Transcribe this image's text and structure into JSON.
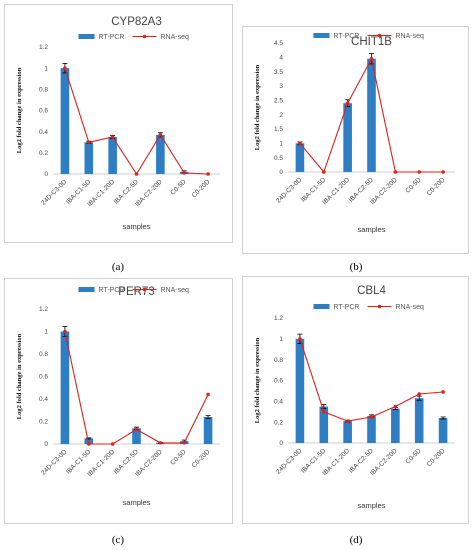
{
  "colors": {
    "bar": "#2e7ec4",
    "line": "#e0201b",
    "err": "#000000"
  },
  "chart_data": [
    {
      "type": "bar",
      "title": "CYP82A3",
      "label": "(a)",
      "categories": [
        "24D-C3-0D",
        "IBA-C1-5D",
        "IBA-C1-20D",
        "IBA-C2-5D",
        "IBA-C2-20D",
        "C0-5D",
        "C0-20D"
      ],
      "series": [
        {
          "name": "RT-PCR",
          "kind": "bar",
          "values": [
            1.0,
            0.3,
            0.35,
            0.0,
            0.37,
            0.02,
            0.0
          ],
          "errors": [
            0.045,
            0.01,
            0.015,
            0.0,
            0.02,
            0.01,
            0.0
          ]
        },
        {
          "name": "RNA-seq",
          "kind": "line",
          "values": [
            1.0,
            0.3,
            0.35,
            0.0,
            0.37,
            0.01,
            0.0
          ]
        }
      ],
      "yticks": [
        "0",
        "0.2",
        "0.4",
        "0.6",
        "0.8",
        "1",
        "1.2"
      ],
      "xlabel": "samples",
      "ylabel": "Log2 fold change in expression",
      "ylim": [
        0,
        1.2
      ],
      "grid": false,
      "legend": "top-center"
    },
    {
      "type": "bar",
      "title": "CHIT1B",
      "label": "(b)",
      "categories": [
        "24D-C3-0D",
        "IBA-C1-5D",
        "IBA-C1-20D",
        "IBA-C2-5D",
        "IBA-C2-20D",
        "C0-5D",
        "C0-20D"
      ],
      "series": [
        {
          "name": "RT-PCR",
          "kind": "bar",
          "values": [
            1.0,
            0.0,
            2.4,
            3.95,
            0.0,
            0.0,
            0.0
          ],
          "errors": [
            0.05,
            0.0,
            0.12,
            0.18,
            0.0,
            0.0,
            0.0
          ]
        },
        {
          "name": "RNA-seq",
          "kind": "line",
          "values": [
            1.0,
            0.0,
            2.4,
            3.95,
            0.0,
            0.0,
            0.0
          ]
        }
      ],
      "yticks": [
        "0",
        "0.5",
        "1",
        "1.5",
        "2",
        "2.5",
        "3",
        "3.5",
        "4",
        "4.5"
      ],
      "xlabel": "samples",
      "ylabel": "Log2 fold change in expression",
      "ylim": [
        0,
        4.5
      ],
      "grid": false,
      "legend": "top-center"
    },
    {
      "type": "bar",
      "title": "PER73",
      "label": "(c)",
      "categories": [
        "24D-C3-0D",
        "IBA-C1-5D",
        "IBA-C1-20D",
        "IBA-C2-5D",
        "IBA-C2-20D",
        "C0-5D",
        "C0-20D"
      ],
      "series": [
        {
          "name": "RT-PCR",
          "kind": "bar",
          "values": [
            1.0,
            0.05,
            0.0,
            0.14,
            0.01,
            0.025,
            0.24
          ],
          "errors": [
            0.045,
            0.005,
            0.0,
            0.01,
            0.005,
            0.01,
            0.012
          ]
        },
        {
          "name": "RNA-seq",
          "kind": "line",
          "values": [
            1.0,
            0.0,
            0.0,
            0.13,
            0.01,
            0.01,
            0.44
          ]
        }
      ],
      "yticks": [
        "0",
        "0.2",
        "0.4",
        "0.6",
        "0.8",
        "1",
        "1.2"
      ],
      "xlabel": "samples",
      "ylabel": "Log2 fold change in expression",
      "ylim": [
        0,
        1.2
      ],
      "grid": false,
      "legend": "top-center"
    },
    {
      "type": "bar",
      "title": "CBL4",
      "label": "(d)",
      "categories": [
        "24D-C3-0D",
        "IBA-C1-5D",
        "IBA-C1-20D",
        "IBA-C2-5D",
        "IBA-C2-20D",
        "C0-5D",
        "C0-20D"
      ],
      "series": [
        {
          "name": "RT-PCR",
          "kind": "bar",
          "values": [
            1.0,
            0.35,
            0.21,
            0.26,
            0.33,
            0.43,
            0.24
          ],
          "errors": [
            0.045,
            0.02,
            0.01,
            0.01,
            0.01,
            0.02,
            0.01
          ]
        },
        {
          "name": "RNA-seq",
          "kind": "line",
          "values": [
            1.0,
            0.3,
            0.21,
            0.25,
            0.35,
            0.47,
            0.49
          ]
        }
      ],
      "yticks": [
        "0",
        "0.2",
        "0.4",
        "0.6",
        "0.8",
        "1",
        "1.2"
      ],
      "xlabel": "samples",
      "ylabel": "Log2 fold change in expression",
      "ylim": [
        0,
        1.2
      ],
      "grid": false,
      "legend": "top-center"
    }
  ]
}
